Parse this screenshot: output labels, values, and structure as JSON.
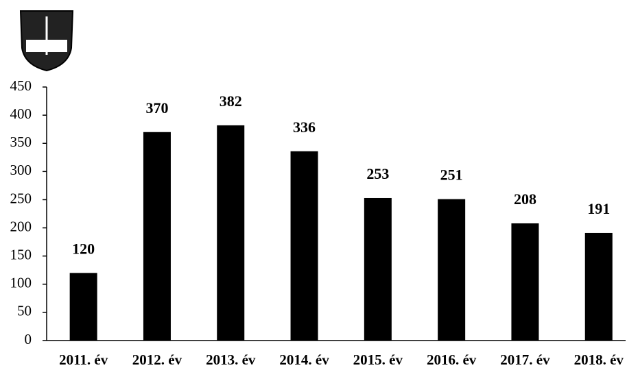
{
  "chart_data": {
    "type": "bar",
    "categories": [
      "2011. év",
      "2012. év",
      "2013. év",
      "2014. év",
      "2015. év",
      "2016. év",
      "2017. év",
      "2018. év"
    ],
    "values": [
      120,
      370,
      382,
      336,
      253,
      251,
      208,
      191
    ],
    "color": "#000000",
    "ylim": [
      0,
      450
    ],
    "yticks": [
      0,
      50,
      100,
      150,
      200,
      250,
      300,
      350,
      400,
      450
    ],
    "grid": false,
    "data_labels": true
  }
}
